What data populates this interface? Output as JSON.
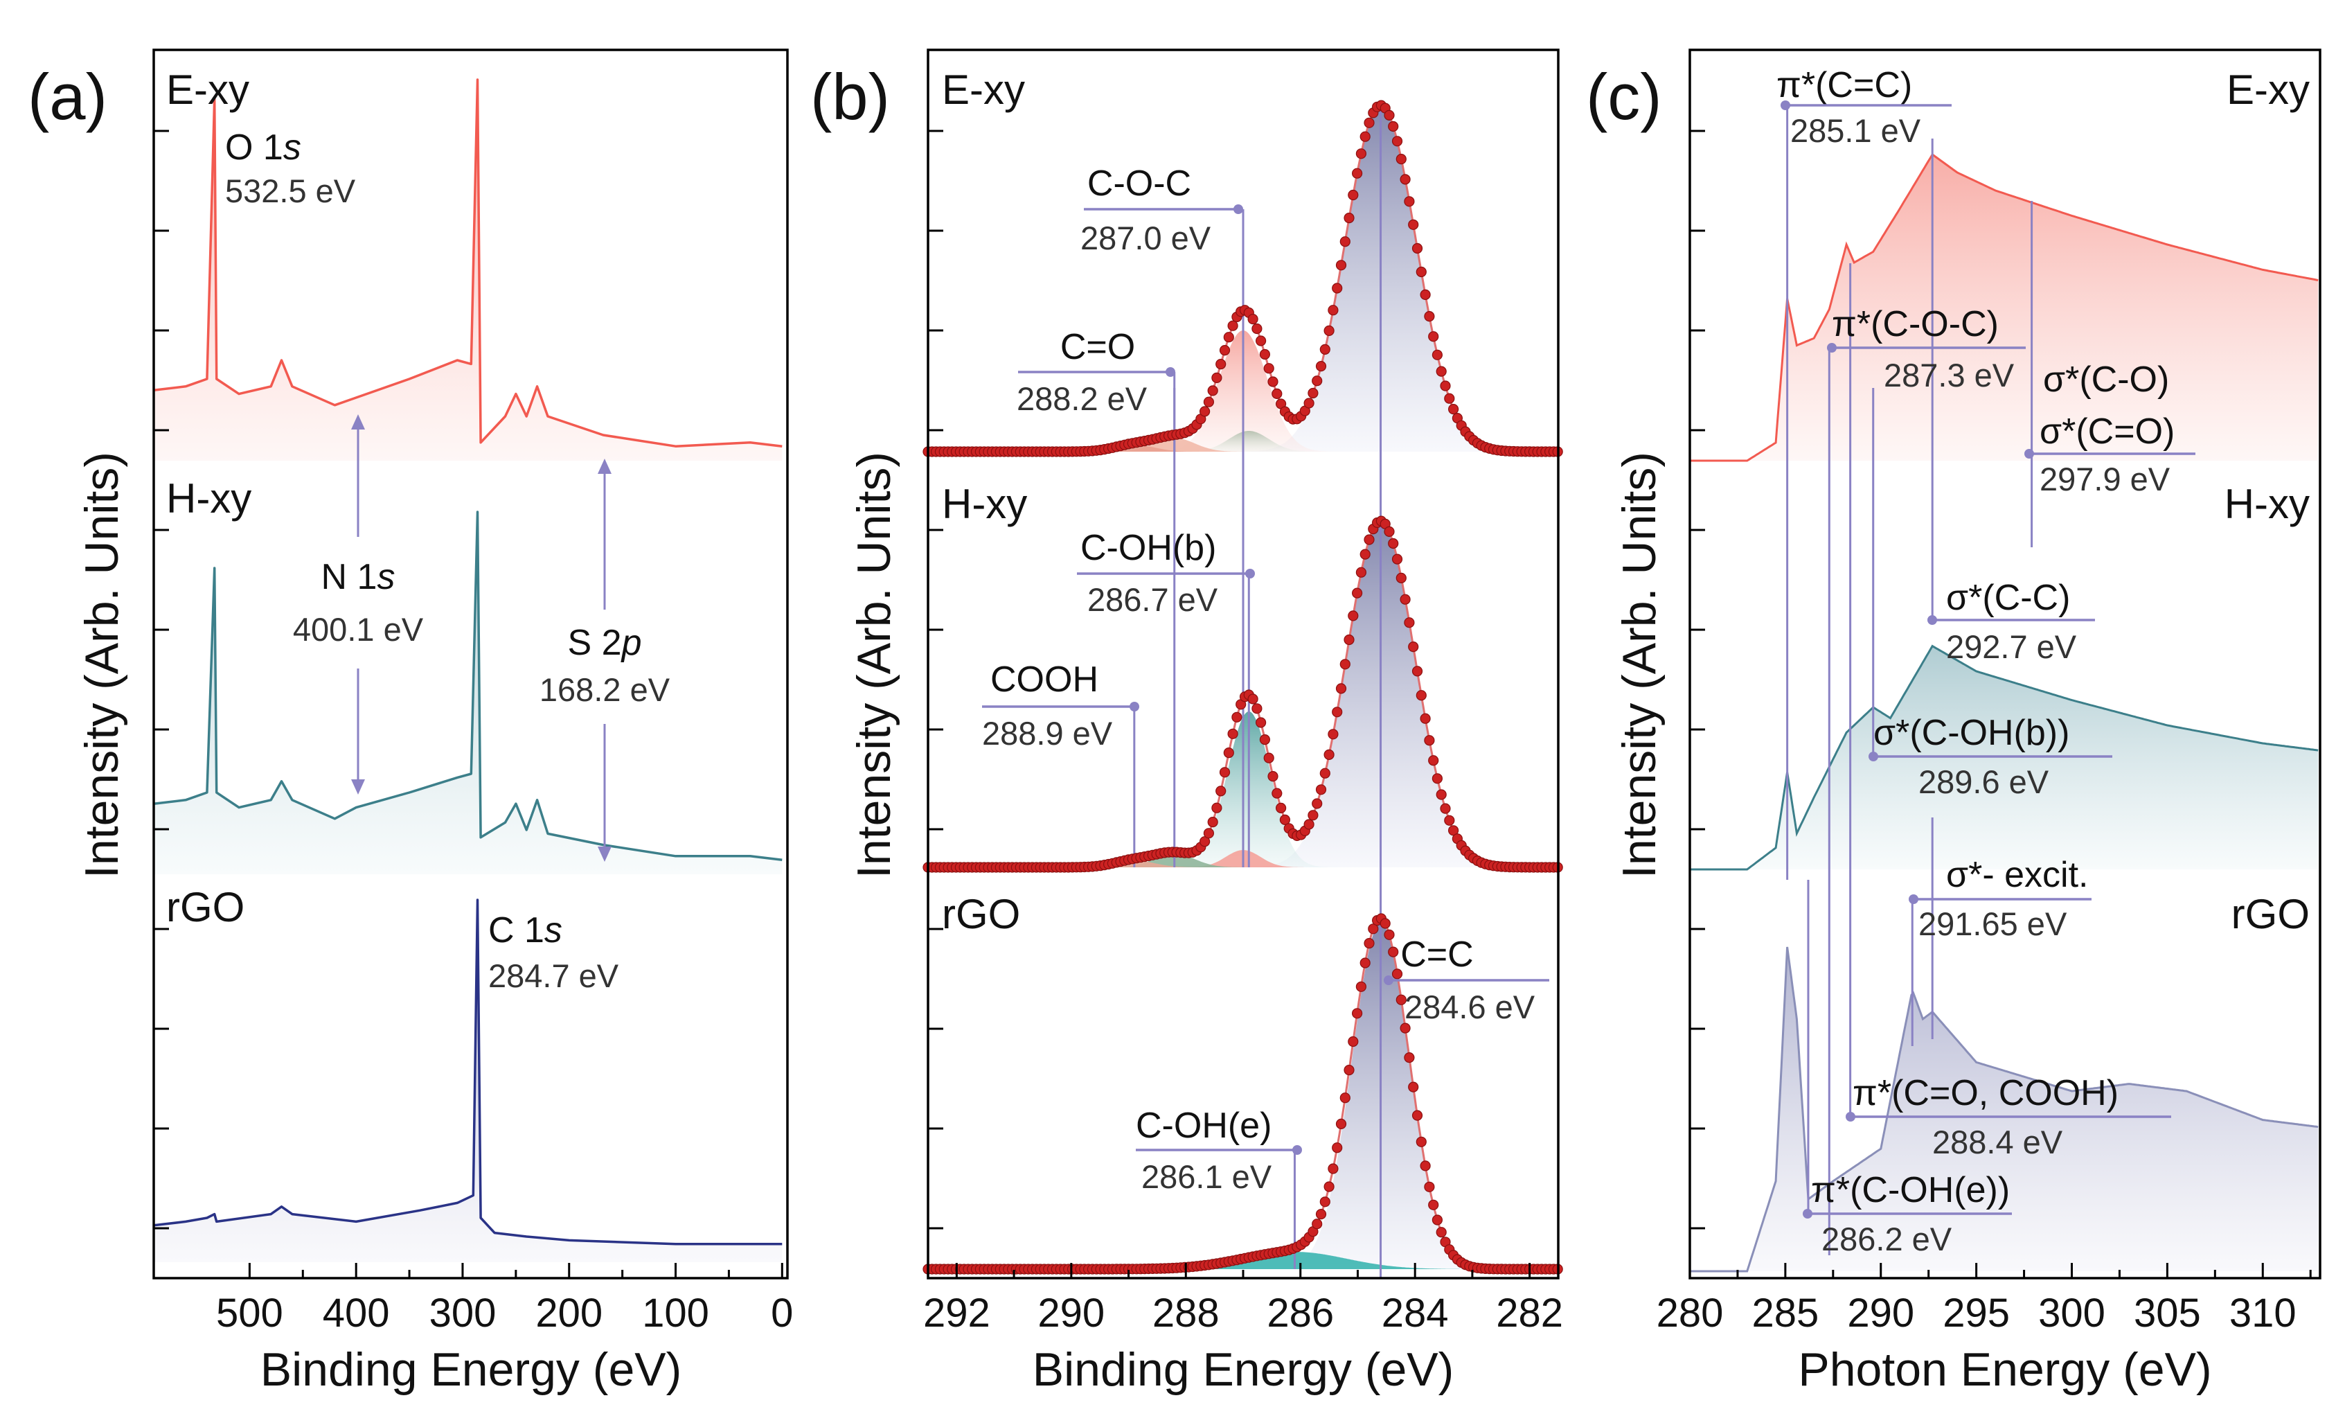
{
  "chart_data": [
    {
      "panel_label": "(a)",
      "type": "line",
      "xlabel": "Binding Energy (eV)",
      "ylabel": "Intensity (Arb. Units)",
      "xlim": [
        590,
        -5
      ],
      "x_reversed": true,
      "xticks": [
        500,
        400,
        300,
        200,
        100,
        0
      ],
      "series": [
        {
          "name": "E-xy",
          "color": "#f25a50",
          "fill": "#fbd8d3",
          "points": [
            [
              590,
              0.17
            ],
            [
              560,
              0.18
            ],
            [
              540,
              0.2
            ],
            [
              533,
              0.95
            ],
            [
              531,
              0.2
            ],
            [
              510,
              0.16
            ],
            [
              480,
              0.18
            ],
            [
              470,
              0.25
            ],
            [
              460,
              0.18
            ],
            [
              420,
              0.13
            ],
            [
              400,
              0.15
            ],
            [
              350,
              0.2
            ],
            [
              305,
              0.25
            ],
            [
              292,
              0.24
            ],
            [
              286,
              1.0
            ],
            [
              283,
              0.03
            ],
            [
              260,
              0.1
            ],
            [
              250,
              0.16
            ],
            [
              240,
              0.1
            ],
            [
              230,
              0.18
            ],
            [
              220,
              0.1
            ],
            [
              168,
              0.05
            ],
            [
              100,
              0.02
            ],
            [
              30,
              0.03
            ],
            [
              0,
              0.02
            ]
          ]
        },
        {
          "name": "H-xy",
          "color": "#3c7f8a",
          "fill": "#e3eff2",
          "points": [
            [
              590,
              0.17
            ],
            [
              560,
              0.18
            ],
            [
              540,
              0.2
            ],
            [
              533,
              0.8
            ],
            [
              531,
              0.2
            ],
            [
              510,
              0.16
            ],
            [
              480,
              0.18
            ],
            [
              470,
              0.23
            ],
            [
              460,
              0.18
            ],
            [
              420,
              0.13
            ],
            [
              400,
              0.16
            ],
            [
              350,
              0.2
            ],
            [
              305,
              0.24
            ],
            [
              292,
              0.25
            ],
            [
              286,
              0.95
            ],
            [
              283,
              0.08
            ],
            [
              260,
              0.12
            ],
            [
              250,
              0.17
            ],
            [
              240,
              0.1
            ],
            [
              230,
              0.18
            ],
            [
              220,
              0.09
            ],
            [
              168,
              0.06
            ],
            [
              100,
              0.03
            ],
            [
              30,
              0.03
            ],
            [
              0,
              0.02
            ]
          ]
        },
        {
          "name": "rGO",
          "color": "#2a3387",
          "fill": "#e6e7f2",
          "points": [
            [
              590,
              0.08
            ],
            [
              560,
              0.09
            ],
            [
              540,
              0.1
            ],
            [
              533,
              0.11
            ],
            [
              531,
              0.09
            ],
            [
              480,
              0.11
            ],
            [
              470,
              0.13
            ],
            [
              460,
              0.11
            ],
            [
              400,
              0.09
            ],
            [
              340,
              0.12
            ],
            [
              305,
              0.14
            ],
            [
              290,
              0.16
            ],
            [
              286,
              0.95
            ],
            [
              283,
              0.1
            ],
            [
              270,
              0.06
            ],
            [
              240,
              0.05
            ],
            [
              200,
              0.04
            ],
            [
              100,
              0.03
            ],
            [
              0,
              0.03
            ]
          ]
        }
      ],
      "annotations": [
        {
          "label": "O 1s",
          "value": "532.5 eV"
        },
        {
          "label": "N 1s",
          "value": "400.1 eV"
        },
        {
          "label": "S 2p",
          "value": "168.2 eV"
        },
        {
          "label": "C 1s",
          "value": "284.7 eV"
        }
      ]
    },
    {
      "panel_label": "(b)",
      "type": "line",
      "xlabel": "Binding Energy (eV)",
      "ylabel": "Intensity (Arb. Units)",
      "xlim": [
        292.5,
        281.5
      ],
      "x_reversed": true,
      "xticks": [
        292,
        290,
        288,
        286,
        284,
        282
      ],
      "data_color": "#cc2222",
      "series": [
        {
          "name": "E-xy",
          "peaks": [
            {
              "center": 284.6,
              "amp": 1.0,
              "sigma": 0.62
            },
            {
              "center": 287.0,
              "amp": 0.35,
              "sigma": 0.42
            },
            {
              "center": 286.9,
              "amp": 0.06,
              "sigma": 0.35
            },
            {
              "center": 288.2,
              "amp": 0.04,
              "sigma": 0.35
            },
            {
              "center": 288.9,
              "amp": 0.02,
              "sigma": 0.35
            }
          ]
        },
        {
          "name": "H-xy",
          "peaks": [
            {
              "center": 284.6,
              "amp": 1.0,
              "sigma": 0.6
            },
            {
              "center": 286.9,
              "amp": 0.45,
              "sigma": 0.38
            },
            {
              "center": 287.0,
              "amp": 0.05,
              "sigma": 0.3
            },
            {
              "center": 288.2,
              "amp": 0.04,
              "sigma": 0.35
            },
            {
              "center": 288.9,
              "amp": 0.02,
              "sigma": 0.35
            }
          ]
        },
        {
          "name": "rGO",
          "peaks": [
            {
              "center": 284.6,
              "amp": 1.0,
              "sigma": 0.5
            },
            {
              "center": 286.1,
              "amp": 0.05,
              "sigma": 0.9
            }
          ]
        }
      ],
      "annotations": [
        {
          "label": "C-O-C",
          "value": "287.0 eV"
        },
        {
          "label": "C=O",
          "value": "288.2 eV"
        },
        {
          "label": "C-OH(b)",
          "value": "286.7 eV"
        },
        {
          "label": "COOH",
          "value": "288.9 eV"
        },
        {
          "label": "C=C",
          "value": "284.6 eV"
        },
        {
          "label": "C-OH(e)",
          "value": "286.1 eV"
        }
      ]
    },
    {
      "panel_label": "(c)",
      "type": "area",
      "xlabel": "Photon Energy (eV)",
      "ylabel": "Intensity (Arb. Units)",
      "xlim": [
        280,
        313
      ],
      "xticks": [
        280,
        285,
        290,
        295,
        300,
        305,
        310
      ],
      "series": [
        {
          "name": "E-xy",
          "color": "#f25a50",
          "fill": "#f7b3aa",
          "points": [
            [
              280,
              0.0
            ],
            [
              283,
              0.0
            ],
            [
              284.5,
              0.05
            ],
            [
              285.1,
              0.45
            ],
            [
              285.6,
              0.32
            ],
            [
              286.5,
              0.34
            ],
            [
              287.3,
              0.42
            ],
            [
              288.2,
              0.6
            ],
            [
              288.6,
              0.55
            ],
            [
              289.6,
              0.58
            ],
            [
              291.0,
              0.7
            ],
            [
              292.7,
              0.85
            ],
            [
              294,
              0.8
            ],
            [
              296,
              0.75
            ],
            [
              300,
              0.68
            ],
            [
              305,
              0.6
            ],
            [
              310,
              0.53
            ],
            [
              313,
              0.5
            ]
          ]
        },
        {
          "name": "H-xy",
          "color": "#3c7f8a",
          "fill": "#a9cdd8",
          "points": [
            [
              280,
              0.0
            ],
            [
              283,
              0.0
            ],
            [
              284.5,
              0.06
            ],
            [
              285.1,
              0.27
            ],
            [
              285.6,
              0.1
            ],
            [
              286.5,
              0.2
            ],
            [
              288.2,
              0.38
            ],
            [
              289.6,
              0.45
            ],
            [
              290.5,
              0.42
            ],
            [
              292.7,
              0.62
            ],
            [
              295,
              0.55
            ],
            [
              300,
              0.47
            ],
            [
              305,
              0.4
            ],
            [
              310,
              0.35
            ],
            [
              313,
              0.33
            ]
          ]
        },
        {
          "name": "rGO",
          "color": "#8a8fb8",
          "fill": "#c6c7dd",
          "points": [
            [
              280,
              0.0
            ],
            [
              283,
              0.0
            ],
            [
              284.5,
              0.25
            ],
            [
              285.1,
              0.9
            ],
            [
              285.6,
              0.7
            ],
            [
              286.2,
              0.2
            ],
            [
              287.5,
              0.25
            ],
            [
              290,
              0.34
            ],
            [
              291.65,
              0.78
            ],
            [
              292.2,
              0.7
            ],
            [
              292.7,
              0.72
            ],
            [
              295,
              0.58
            ],
            [
              300,
              0.5
            ],
            [
              303,
              0.52
            ],
            [
              306,
              0.5
            ],
            [
              310,
              0.42
            ],
            [
              313,
              0.4
            ]
          ]
        }
      ],
      "annotations": [
        {
          "label": "π*(C=C)",
          "value": "285.1 eV"
        },
        {
          "label": "π*(C-O-C)",
          "value": "287.3 eV"
        },
        {
          "label": "σ*(C-O)",
          "value": ""
        },
        {
          "label": "σ*(C=O)",
          "value": "297.9 eV"
        },
        {
          "label": "σ*(C-C)",
          "value": "292.7 eV"
        },
        {
          "label": "σ*(C-OH(b))",
          "value": "289.6 eV"
        },
        {
          "label": "σ*- excit.",
          "value": "291.65 eV"
        },
        {
          "label": "π*(C=O, COOH)",
          "value": "288.4 eV"
        },
        {
          "label": "π*(C-OH(e))",
          "value": "286.2 eV"
        }
      ]
    }
  ]
}
